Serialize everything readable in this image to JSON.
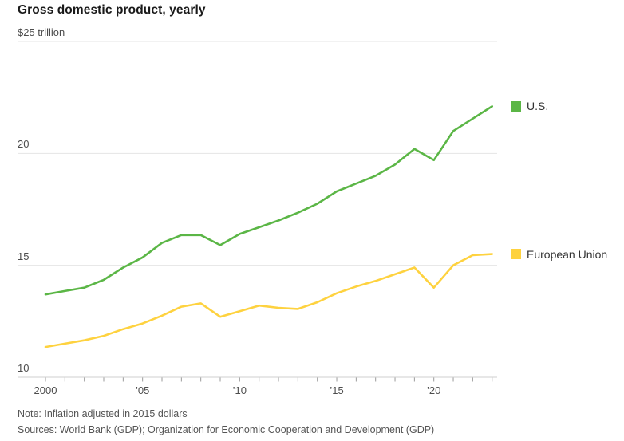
{
  "title": "Gross domestic product, yearly",
  "legend": [
    {
      "label": "U.S.",
      "color": "#5bb646"
    },
    {
      "label": "European Union",
      "color": "#fed23f"
    }
  ],
  "notes": {
    "note": "Note: Inflation adjusted in 2015 dollars",
    "sources": "Sources: World Bank (GDP); Organization for Economic Cooperation and Development (GDP)"
  },
  "chart_data": {
    "type": "line",
    "title": "Gross domestic product, yearly",
    "unit": "trillion USD, inflation adjusted in 2015 dollars",
    "x": [
      2000,
      2001,
      2002,
      2003,
      2004,
      2005,
      2006,
      2007,
      2008,
      2009,
      2010,
      2011,
      2012,
      2013,
      2014,
      2015,
      2016,
      2017,
      2018,
      2019,
      2020,
      2021,
      2022,
      2023
    ],
    "series": [
      {
        "name": "U.S.",
        "color": "#5bb646",
        "values": [
          13.7,
          13.85,
          14.0,
          14.35,
          14.9,
          15.35,
          16.0,
          16.35,
          16.35,
          15.9,
          16.4,
          16.7,
          17.0,
          17.35,
          17.75,
          18.3,
          18.65,
          19.0,
          19.5,
          20.2,
          19.7,
          21.0,
          21.55,
          22.1
        ]
      },
      {
        "name": "European Union",
        "color": "#fed23f",
        "values": [
          11.35,
          11.5,
          11.65,
          11.85,
          12.15,
          12.4,
          12.75,
          13.15,
          13.3,
          12.7,
          12.95,
          13.2,
          13.1,
          13.05,
          13.35,
          13.75,
          14.05,
          14.3,
          14.6,
          14.9,
          14.0,
          15.0,
          15.45,
          15.5
        ]
      }
    ],
    "ylim": [
      10,
      25
    ],
    "xlim": [
      2000,
      2023
    ],
    "y_gridlines": [
      25,
      20,
      15,
      10
    ],
    "y_tick_labels": [
      "$25 trillion",
      "20",
      "15",
      "10"
    ],
    "x_ticks": [
      {
        "year": 2000,
        "label": "2000"
      },
      {
        "year": 2005,
        "label": "’05"
      },
      {
        "year": 2010,
        "label": "’10"
      },
      {
        "year": 2015,
        "label": "’15"
      },
      {
        "year": 2020,
        "label": "’20"
      }
    ],
    "grid": "horizontal",
    "legend_position": "right-of-line-ends"
  }
}
